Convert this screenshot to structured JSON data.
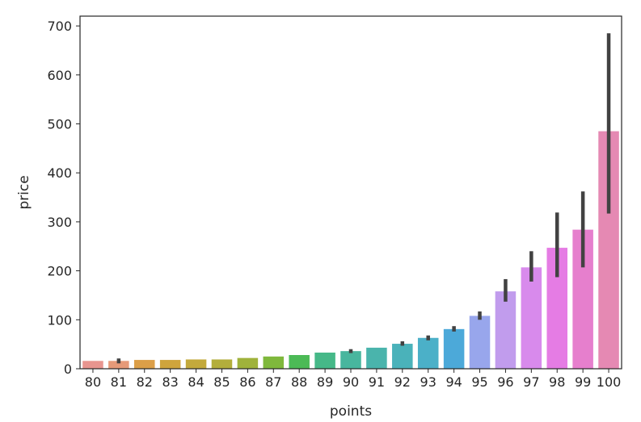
{
  "chart_data": {
    "type": "bar",
    "title": "",
    "xlabel": "points",
    "ylabel": "price",
    "ylim": [
      0,
      720
    ],
    "yticks": [
      0,
      100,
      200,
      300,
      400,
      500,
      600,
      700
    ],
    "ytick_labels": [
      "0",
      "100",
      "200",
      "300",
      "400",
      "500",
      "600",
      "700"
    ],
    "grid": false,
    "categories": [
      "80",
      "81",
      "82",
      "83",
      "84",
      "85",
      "86",
      "87",
      "88",
      "89",
      "90",
      "91",
      "92",
      "93",
      "94",
      "95",
      "96",
      "97",
      "98",
      "99",
      "100"
    ],
    "values": [
      16,
      16,
      18,
      18,
      19,
      19,
      22,
      25,
      28,
      33,
      36,
      43,
      51,
      63,
      81,
      108,
      158,
      207,
      247,
      284,
      485
    ],
    "error_low": [
      16,
      11,
      18,
      18,
      19,
      19,
      22,
      25,
      28,
      33,
      32,
      43,
      47,
      58,
      76,
      100,
      137,
      178,
      187,
      207,
      317
    ],
    "error_high": [
      16,
      21,
      18,
      18,
      19,
      19,
      22,
      25,
      28,
      33,
      40,
      43,
      56,
      68,
      87,
      117,
      183,
      240,
      319,
      362,
      685
    ],
    "colors": [
      "#e8958f",
      "#e69a79",
      "#dc9f48",
      "#cfa43c",
      "#c3a93c",
      "#b3ae3c",
      "#9fb23b",
      "#7fb83c",
      "#4cba56",
      "#46b888",
      "#48b69e",
      "#4ab4ac",
      "#4ab2ba",
      "#4bb0c8",
      "#4ca9d9",
      "#98a6ec",
      "#c19ced",
      "#d88aec",
      "#e57ce4",
      "#e67fcd",
      "#e589b3"
    ],
    "error_color": "#424242"
  }
}
